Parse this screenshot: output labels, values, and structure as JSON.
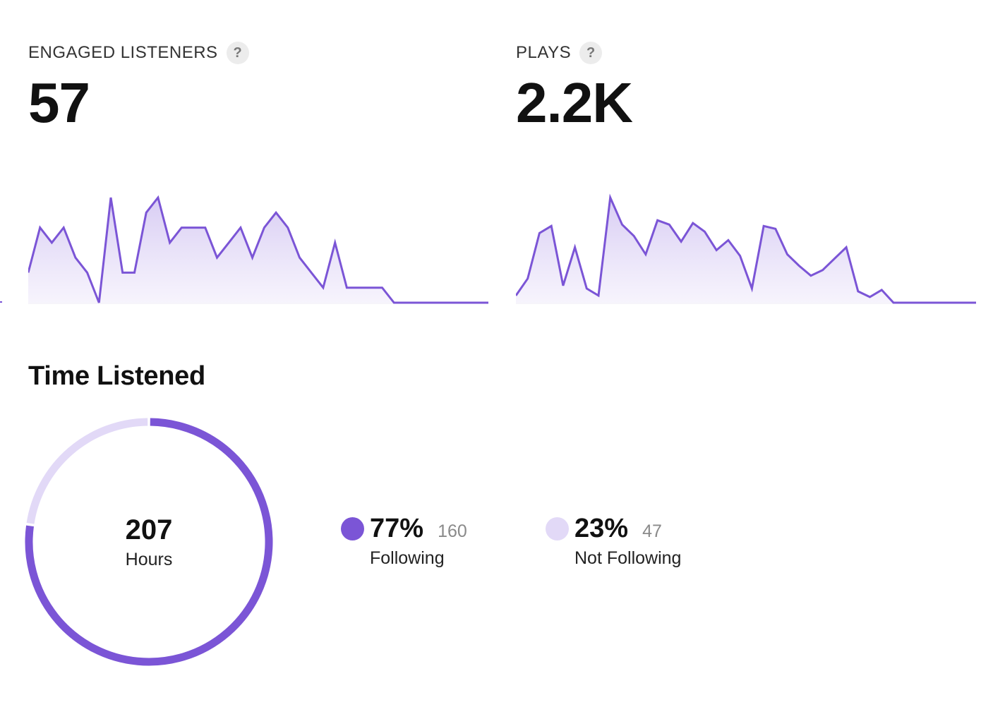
{
  "metrics": {
    "engaged_listeners": {
      "label": "ENGAGED LISTENERS",
      "help": "?",
      "value": "57"
    },
    "plays": {
      "label": "PLAYS",
      "help": "?",
      "value": "2.2K"
    }
  },
  "time_listened": {
    "title": "Time Listened",
    "total_value": "207",
    "total_unit": "Hours",
    "segments": [
      {
        "percent": "77%",
        "count": "160",
        "label": "Following",
        "fraction": 0.77,
        "color": "#7b55d6"
      },
      {
        "percent": "23%",
        "count": "47",
        "label": "Not Following",
        "fraction": 0.23,
        "color": "#e2d9f7"
      }
    ]
  },
  "chart_data": [
    {
      "type": "area",
      "x": [
        0,
        1,
        2,
        3,
        4,
        5,
        6,
        7,
        8,
        9,
        10,
        11,
        12,
        13,
        14,
        15,
        16,
        17,
        18,
        19,
        20,
        21,
        22,
        23,
        24,
        25,
        26,
        27,
        28,
        29,
        30,
        31,
        32,
        33,
        34,
        35,
        36,
        37,
        38,
        39
      ],
      "values": [
        1,
        4,
        3,
        4,
        2,
        1,
        -1,
        6,
        1,
        1,
        5,
        6,
        3,
        4,
        4,
        4,
        2,
        3,
        4,
        2,
        4,
        5,
        4,
        2,
        1,
        0,
        3,
        0,
        0,
        0,
        0,
        -1,
        -1,
        -1,
        -1,
        -1,
        -1,
        -1,
        -1,
        -1
      ],
      "ylim": [
        -1,
        6
      ],
      "color": "#7b55d6"
    },
    {
      "type": "area",
      "x": [
        0,
        1,
        2,
        3,
        4,
        5,
        6,
        7,
        8,
        9,
        10,
        11,
        12,
        13,
        14,
        15,
        16,
        17,
        18,
        19,
        20,
        21,
        22,
        23,
        24,
        25,
        26,
        27,
        28,
        29,
        30,
        31,
        32,
        33,
        34,
        35,
        36,
        37,
        38,
        39
      ],
      "values": [
        0.3,
        1.5,
        4.7,
        5.2,
        1,
        3.7,
        0.8,
        0.3,
        7.2,
        5.3,
        4.5,
        3.2,
        5.6,
        5.3,
        4.1,
        5.4,
        4.8,
        3.5,
        4.2,
        3.1,
        0.8,
        5.2,
        5,
        3.2,
        2.4,
        1.7,
        2.1,
        2.9,
        3.7,
        0.6,
        0.2,
        0.7,
        -0.2,
        -0.2,
        -0.2,
        -0.2,
        -0.2,
        -0.2,
        -0.2,
        -0.2
      ],
      "ylim": [
        -0.2,
        7.2
      ],
      "color": "#7b55d6"
    },
    {
      "type": "pie",
      "categories": [
        "Following",
        "Not Following"
      ],
      "values": [
        160,
        47
      ],
      "colors": [
        "#7b55d6",
        "#e2d9f7"
      ]
    }
  ]
}
